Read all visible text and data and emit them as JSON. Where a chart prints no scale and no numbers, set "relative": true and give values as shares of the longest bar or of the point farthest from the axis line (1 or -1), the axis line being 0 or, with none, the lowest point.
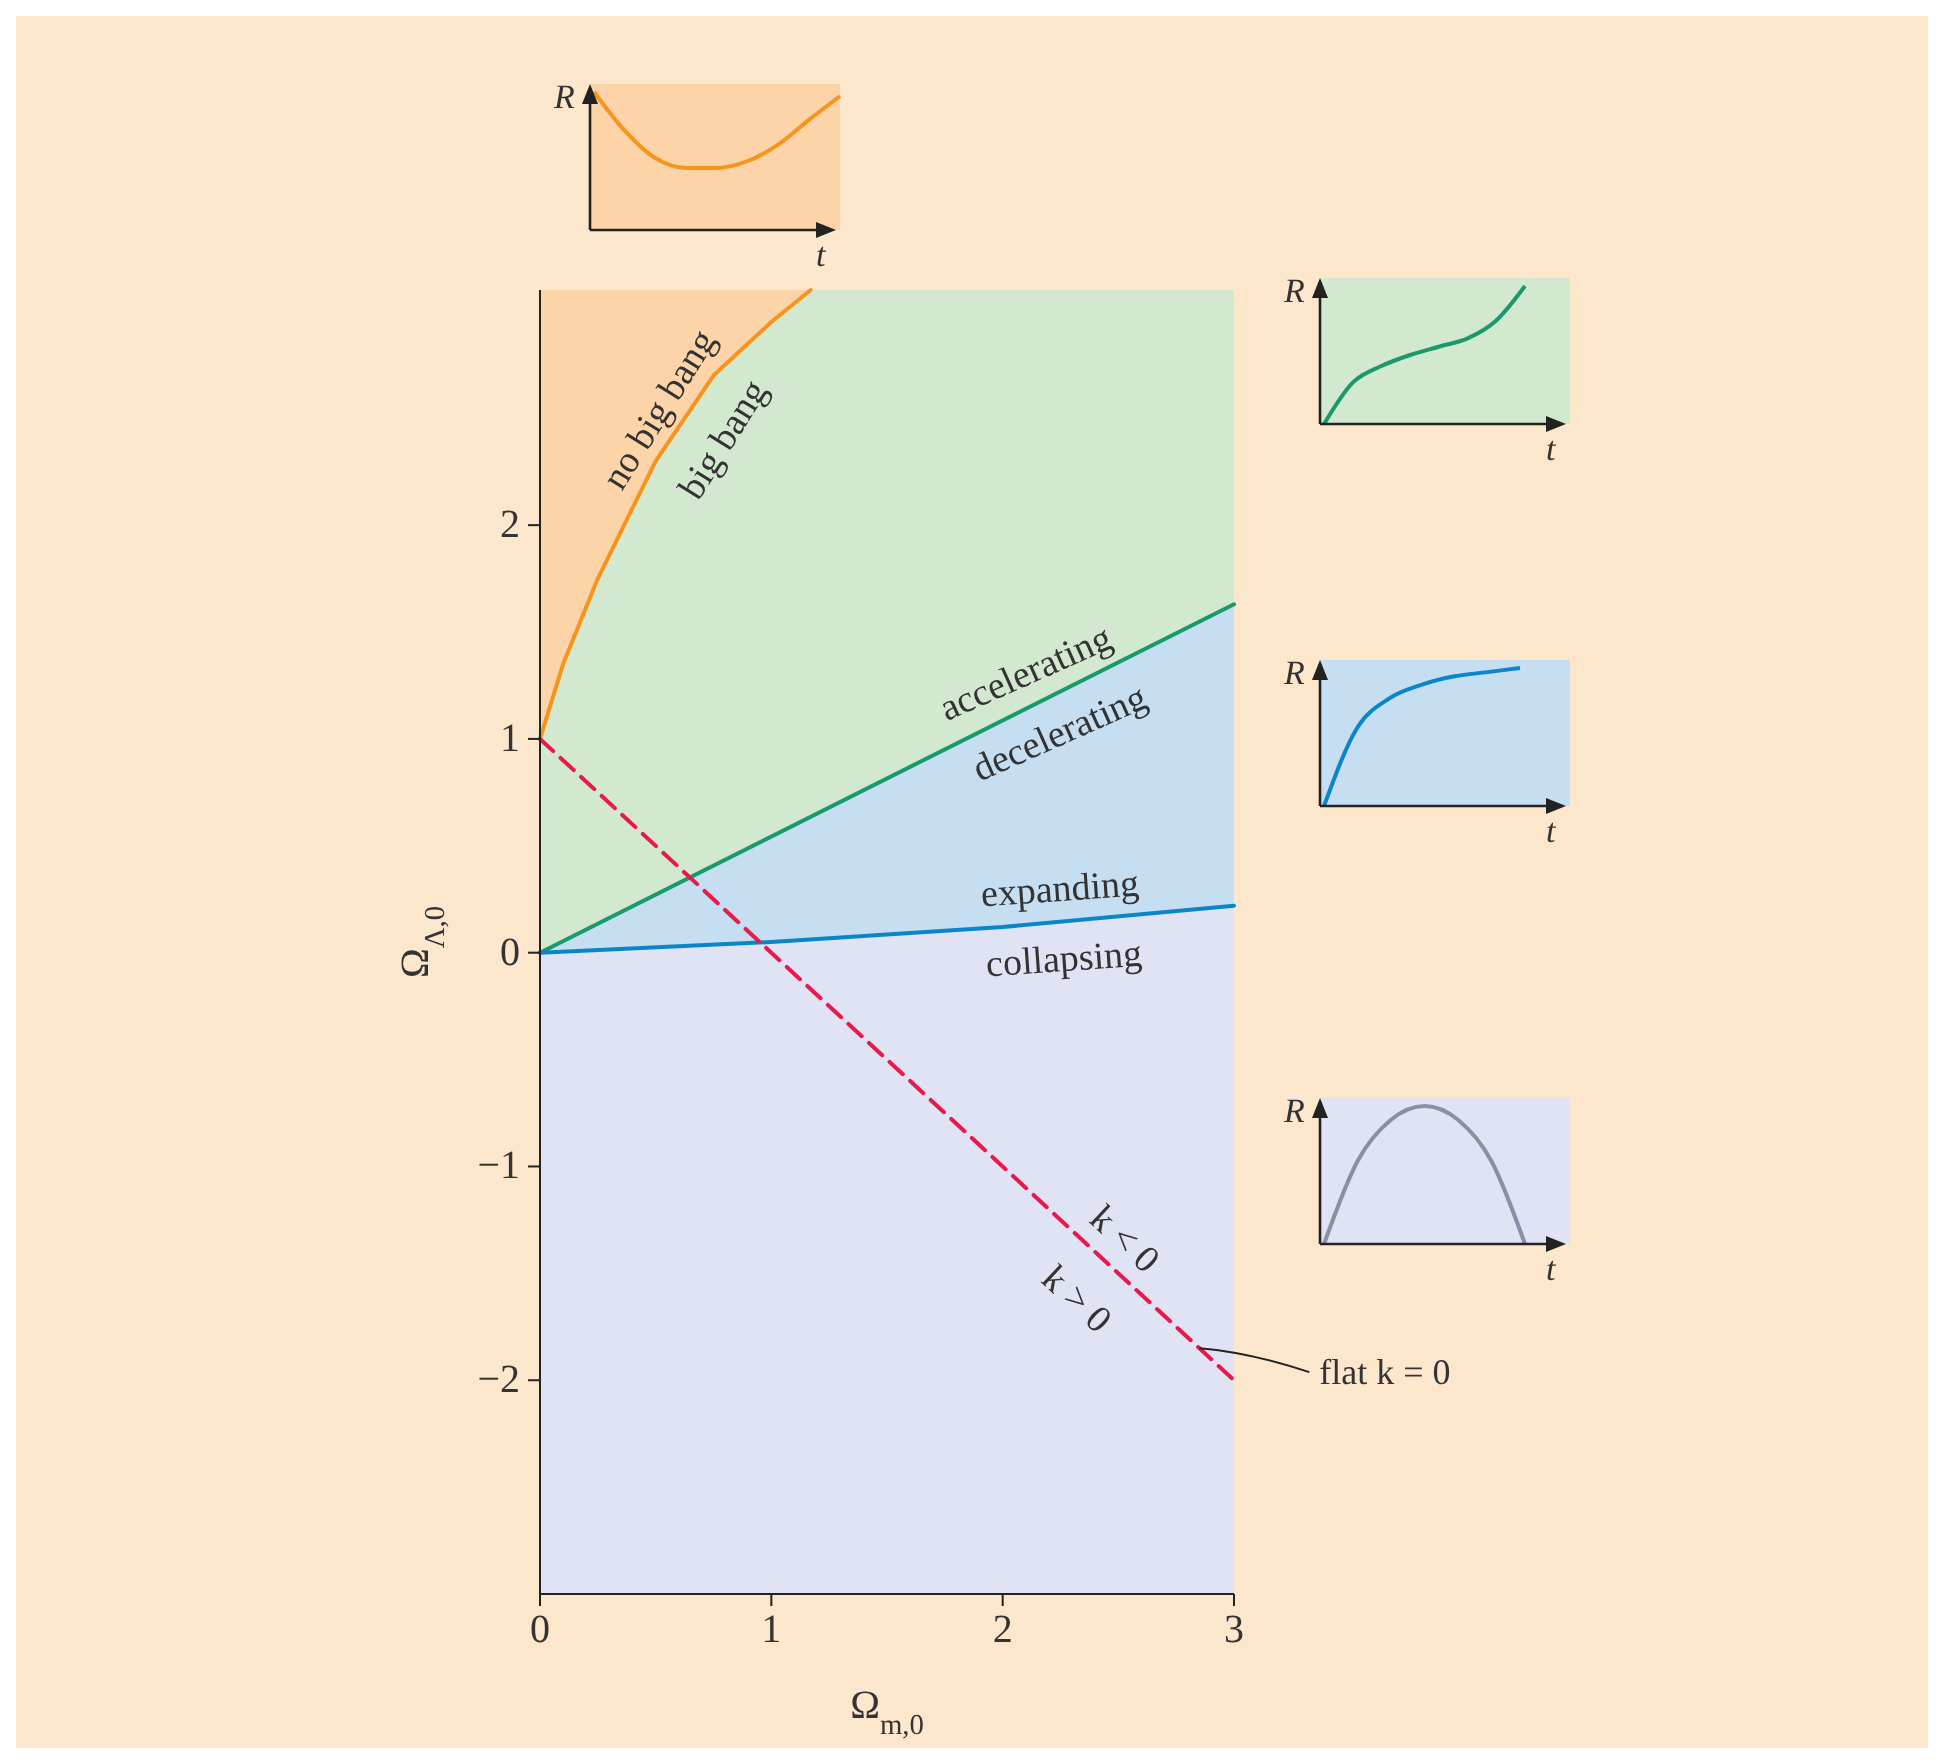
{
  "chart_data": [
    {
      "type": "line",
      "xlabel": "Ω$_{m,0}$",
      "ylabel": "Ω$_{Λ,0}$",
      "xlim": [
        0,
        3
      ],
      "ylim": [
        -3,
        3.1
      ],
      "xticks": [
        0,
        1,
        2,
        3
      ],
      "yticks": [
        {
          "value": -2,
          "label": "−2"
        },
        {
          "value": -1,
          "label": "−1"
        },
        0,
        1,
        2
      ],
      "series": [
        {
          "color": "#f7941d",
          "x": [
            0,
            0.1,
            0.25,
            0.5,
            0.75,
            1,
            1.17
          ],
          "values": [
            1,
            1.35,
            1.75,
            2.3,
            2.7,
            2.95,
            3.1
          ]
        },
        {
          "color": "#1a9a6c",
          "x": [
            0,
            3
          ],
          "values": [
            0,
            1.63
          ]
        },
        {
          "color": "#0a86c8",
          "x": [
            0,
            1,
            2,
            3
          ],
          "values": [
            0,
            0.05,
            0.12,
            0.22
          ]
        },
        {
          "color": "#e8194b",
          "line_style": "dashed",
          "x": [
            0,
            3
          ],
          "values": [
            1,
            -2
          ]
        }
      ],
      "annotations": [
        "no big bang",
        "big bang",
        "accelerating",
        "decelerating",
        "expanding",
        "collapsing",
        "k < 0",
        "k > 0",
        {
          "text": "flat k = 0",
          "x": 2.85,
          "y": -1.85
        }
      ]
    },
    {
      "type": "line",
      "relative": true,
      "xlabel": "t",
      "ylabel": "R",
      "categories": [
        null,
        null,
        null,
        null,
        null,
        null,
        null,
        null,
        null
      ],
      "series": [
        {
          "color": "#f7941d",
          "values": [
            1,
            0.72,
            0.52,
            0.45,
            0.45,
            0.5,
            0.62,
            0.8,
            0.97
          ]
        }
      ]
    },
    {
      "type": "line",
      "relative": true,
      "xlabel": "t",
      "ylabel": "R",
      "categories": [
        null,
        null,
        null,
        null,
        null,
        null,
        null,
        null
      ],
      "series": [
        {
          "color": "#1a9a6c",
          "values": [
            0,
            0.3,
            0.42,
            0.5,
            0.56,
            0.62,
            0.75,
            1
          ]
        }
      ]
    },
    {
      "type": "line",
      "relative": true,
      "xlabel": "t",
      "ylabel": "R",
      "categories": [
        null,
        null,
        null,
        null,
        null,
        null,
        null
      ],
      "series": [
        {
          "color": "#0a86c8",
          "values": [
            0,
            0.56,
            0.78,
            0.88,
            0.94,
            0.97,
            1
          ]
        }
      ]
    },
    {
      "type": "line",
      "relative": true,
      "xlabel": "t",
      "ylabel": "R",
      "categories": [
        null,
        null,
        null,
        null,
        null,
        null,
        null
      ],
      "series": [
        {
          "color": "#8a8fa8",
          "values": [
            0,
            0.6,
            0.9,
            1,
            0.9,
            0.6,
            0
          ]
        }
      ]
    }
  ]
}
